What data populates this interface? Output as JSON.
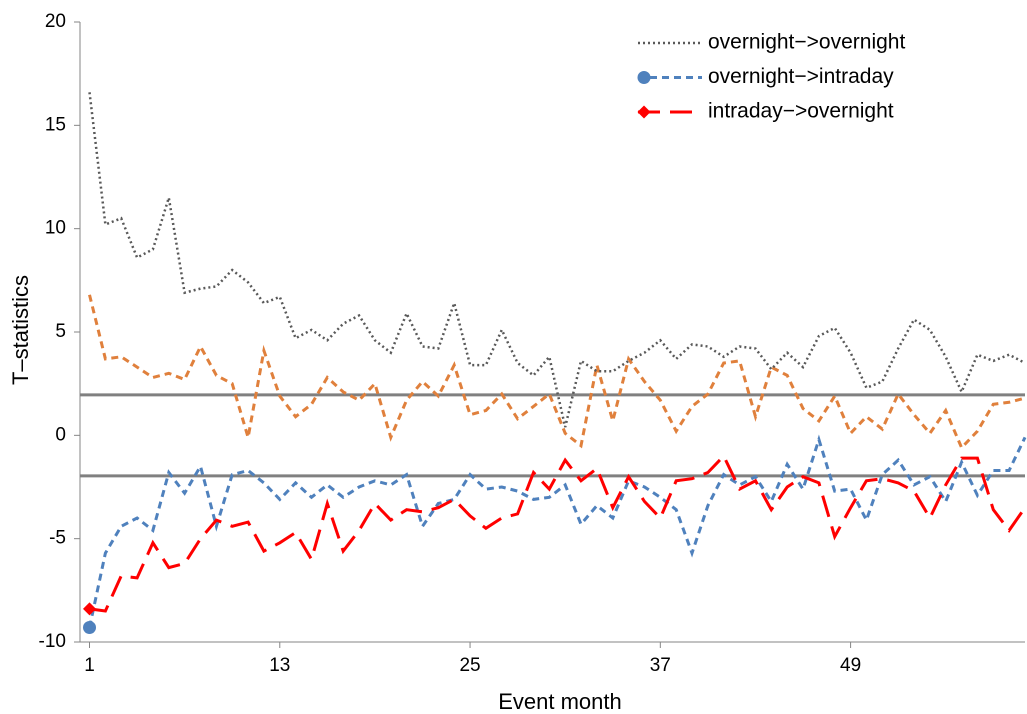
{
  "chart_data": {
    "type": "line",
    "xlabel": "Event   month",
    "ylabel": "T–statistics",
    "x": [
      1,
      2,
      3,
      4,
      5,
      6,
      7,
      8,
      9,
      10,
      11,
      12,
      13,
      14,
      15,
      16,
      17,
      18,
      19,
      20,
      21,
      22,
      23,
      24,
      25,
      26,
      27,
      28,
      29,
      30,
      31,
      32,
      33,
      34,
      35,
      36,
      37,
      38,
      39,
      40,
      41,
      42,
      43,
      44,
      45,
      46,
      47,
      48,
      49,
      50,
      51,
      52,
      53,
      54,
      55,
      56,
      57,
      58,
      59,
      60
    ],
    "xlim": [
      0.4,
      60
    ],
    "xticks": [
      1,
      13,
      25,
      37,
      49
    ],
    "ylim": [
      -10,
      20
    ],
    "yticks": [
      -10,
      -5,
      0,
      5,
      10,
      15,
      20
    ],
    "hlines": [
      1.96,
      -1.96
    ],
    "hline_color": "#808080",
    "legend": "upper right",
    "series": [
      {
        "name": "overnight−>overnight",
        "color": "#595959",
        "style": "dotted",
        "values": [
          16.6,
          10.2,
          10.5,
          8.6,
          9.0,
          11.5,
          6.9,
          7.1,
          7.2,
          8.0,
          7.4,
          6.4,
          6.7,
          4.7,
          5.1,
          4.6,
          5.4,
          5.8,
          4.6,
          4.0,
          5.9,
          4.3,
          4.2,
          6.4,
          3.4,
          3.4,
          5.1,
          3.5,
          2.9,
          3.8,
          0.4,
          3.6,
          3.1,
          3.1,
          3.6,
          4.0,
          4.6,
          3.7,
          4.4,
          4.3,
          3.8,
          4.3,
          4.2,
          3.2,
          4.0,
          3.3,
          4.8,
          5.2,
          4.0,
          2.3,
          2.6,
          4.2,
          5.6,
          5.1,
          3.8,
          2.1,
          3.9,
          3.6,
          3.9,
          3.5
        ]
      },
      {
        "name": "overnight−>intraday",
        "color": "#4f81bd",
        "style": "dashed",
        "marker": "circle",
        "values": [
          -9.3,
          -5.7,
          -4.4,
          -4.0,
          -4.6,
          -1.8,
          -2.8,
          -1.5,
          -4.4,
          -1.9,
          -1.7,
          -2.3,
          -3.1,
          -2.3,
          -3.0,
          -2.4,
          -3.0,
          -2.5,
          -2.2,
          -2.4,
          -1.9,
          -4.4,
          -3.3,
          -3.1,
          -1.9,
          -2.6,
          -2.5,
          -2.7,
          -3.1,
          -3.0,
          -2.4,
          -4.3,
          -3.4,
          -4.0,
          -2.2,
          -2.5,
          -3.0,
          -3.6,
          -5.7,
          -3.4,
          -1.9,
          -2.4,
          -2.0,
          -3.2,
          -1.4,
          -2.6,
          -0.2,
          -2.7,
          -2.6,
          -4.1,
          -1.9,
          -1.2,
          -2.4,
          -2.0,
          -3.2,
          -1.3,
          -2.9,
          -1.7,
          -1.7,
          -0.1
        ]
      },
      {
        "name": "intraday−>overnight",
        "color": "#ff0000",
        "style": "longdash",
        "marker": "diamond",
        "values": [
          -8.4,
          -8.5,
          -6.8,
          -6.9,
          -5.2,
          -6.4,
          -6.2,
          -5.0,
          -4.1,
          -4.4,
          -4.2,
          -5.6,
          -5.2,
          -4.7,
          -6.0,
          -3.3,
          -5.6,
          -4.6,
          -3.3,
          -4.1,
          -3.6,
          -3.7,
          -3.5,
          -3.1,
          -3.9,
          -4.5,
          -4.0,
          -3.8,
          -1.8,
          -2.6,
          -1.2,
          -2.2,
          -1.6,
          -3.5,
          -2.0,
          -3.2,
          -4.0,
          -2.2,
          -2.1,
          -1.8,
          -1.0,
          -2.6,
          -2.2,
          -3.6,
          -2.5,
          -2.0,
          -2.3,
          -4.9,
          -3.5,
          -2.2,
          -2.1,
          -2.3,
          -2.7,
          -4.0,
          -2.4,
          -1.1,
          -1.1,
          -3.6,
          -4.6,
          -3.5
        ]
      },
      {
        "color": "#e0803c",
        "style": "dashed",
        "values": [
          6.8,
          3.7,
          3.8,
          3.3,
          2.8,
          3.0,
          2.7,
          4.3,
          2.9,
          2.5,
          -0.1,
          4.1,
          1.9,
          0.9,
          1.5,
          2.8,
          2.1,
          1.7,
          2.5,
          -0.1,
          1.7,
          2.6,
          1.9,
          3.4,
          1.0,
          1.2,
          2.0,
          0.8,
          1.4,
          2.0,
          0.1,
          -0.5,
          3.4,
          0.7,
          3.7,
          2.6,
          1.7,
          0.2,
          1.4,
          2.0,
          3.5,
          3.6,
          0.9,
          3.3,
          2.9,
          1.3,
          0.7,
          1.9,
          0.1,
          0.9,
          0.3,
          2.0,
          1.0,
          0.1,
          1.2,
          -0.6,
          0.2,
          1.5,
          1.6,
          1.8
        ]
      }
    ]
  }
}
